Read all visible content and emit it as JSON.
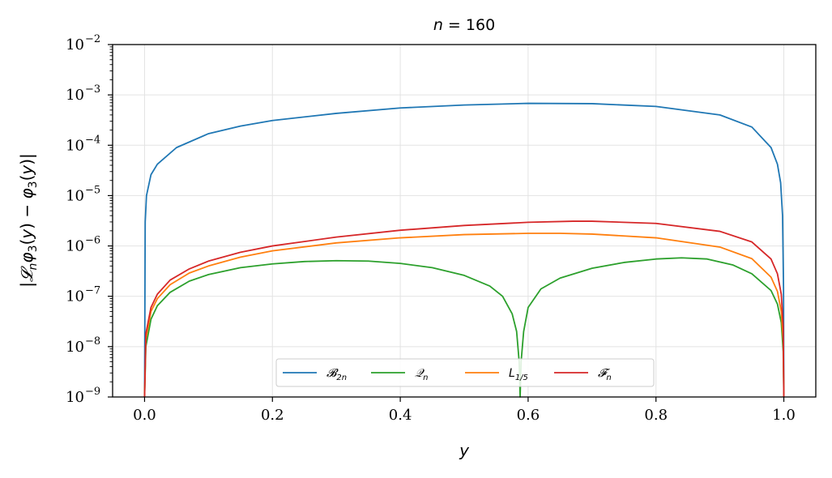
{
  "chart_data": {
    "type": "line",
    "title": "n = 160",
    "xlabel": "y",
    "ylabel": "|𝓛ₙφ₃(y) − φ₃(y)|",
    "xlim": [
      -0.05,
      1.05
    ],
    "ylim": [
      1e-09,
      0.01
    ],
    "yscale": "log",
    "grid": true,
    "legend_position": "lower-center",
    "x_ticks": [
      "0.0",
      "0.2",
      "0.4",
      "0.6",
      "0.8",
      "1.0"
    ],
    "y_ticks": [
      {
        "base": "10",
        "exp": "−2"
      },
      {
        "base": "10",
        "exp": "−3"
      },
      {
        "base": "10",
        "exp": "−4"
      },
      {
        "base": "10",
        "exp": "−5"
      },
      {
        "base": "10",
        "exp": "−6"
      },
      {
        "base": "10",
        "exp": "−7"
      },
      {
        "base": "10",
        "exp": "−8"
      },
      {
        "base": "10",
        "exp": "−9"
      }
    ],
    "series": [
      {
        "name": "𝓑₂ₙ",
        "legend_main": "𝓑",
        "legend_sub": "2n",
        "color": "#1f77b4",
        "points": [
          [
            0.0,
            1e-09
          ],
          [
            0.001,
            3e-06
          ],
          [
            0.003,
            1e-05
          ],
          [
            0.01,
            2.6e-05
          ],
          [
            0.02,
            4.2e-05
          ],
          [
            0.05,
            9e-05
          ],
          [
            0.1,
            0.00017
          ],
          [
            0.15,
            0.00024
          ],
          [
            0.2,
            0.00031
          ],
          [
            0.3,
            0.00043
          ],
          [
            0.4,
            0.00055
          ],
          [
            0.5,
            0.00063
          ],
          [
            0.6,
            0.00068
          ],
          [
            0.7,
            0.00067
          ],
          [
            0.8,
            0.00059
          ],
          [
            0.9,
            0.0004
          ],
          [
            0.95,
            0.00023
          ],
          [
            0.98,
            9e-05
          ],
          [
            0.99,
            4.2e-05
          ],
          [
            0.995,
            1.8e-05
          ],
          [
            0.998,
            4e-06
          ],
          [
            0.9995,
            1.5e-07
          ],
          [
            1.0,
            1e-09
          ]
        ]
      },
      {
        "name": "𝒬ₙ",
        "legend_main": "𝒬",
        "legend_sub": "n",
        "color": "#2ca02c",
        "points": [
          [
            0.0,
            1e-09
          ],
          [
            0.002,
            1e-08
          ],
          [
            0.01,
            3.5e-08
          ],
          [
            0.02,
            6.5e-08
          ],
          [
            0.04,
            1.2e-07
          ],
          [
            0.07,
            2e-07
          ],
          [
            0.1,
            2.7e-07
          ],
          [
            0.15,
            3.7e-07
          ],
          [
            0.2,
            4.4e-07
          ],
          [
            0.25,
            4.9e-07
          ],
          [
            0.3,
            5.1e-07
          ],
          [
            0.35,
            5e-07
          ],
          [
            0.4,
            4.5e-07
          ],
          [
            0.45,
            3.7e-07
          ],
          [
            0.5,
            2.6e-07
          ],
          [
            0.54,
            1.6e-07
          ],
          [
            0.56,
            1e-07
          ],
          [
            0.575,
            4.5e-08
          ],
          [
            0.582,
            2e-08
          ],
          [
            0.586,
            5e-09
          ],
          [
            0.5875,
            1e-09
          ],
          [
            0.589,
            5e-09
          ],
          [
            0.593,
            2e-08
          ],
          [
            0.6,
            6e-08
          ],
          [
            0.62,
            1.4e-07
          ],
          [
            0.65,
            2.3e-07
          ],
          [
            0.7,
            3.6e-07
          ],
          [
            0.75,
            4.7e-07
          ],
          [
            0.8,
            5.5e-07
          ],
          [
            0.84,
            5.8e-07
          ],
          [
            0.88,
            5.5e-07
          ],
          [
            0.92,
            4.2e-07
          ],
          [
            0.95,
            2.8e-07
          ],
          [
            0.98,
            1.3e-07
          ],
          [
            0.99,
            7e-08
          ],
          [
            0.996,
            3e-08
          ],
          [
            0.999,
            8e-09
          ],
          [
            1.0,
            1e-09
          ]
        ]
      },
      {
        "name": "L₁/₅",
        "legend_main": "L",
        "legend_sub": "1/5",
        "color": "#ff7f0e",
        "points": [
          [
            0.0,
            1e-09
          ],
          [
            0.002,
            1.4e-08
          ],
          [
            0.01,
            5e-08
          ],
          [
            0.02,
            9e-08
          ],
          [
            0.04,
            1.7e-07
          ],
          [
            0.07,
            2.9e-07
          ],
          [
            0.1,
            4e-07
          ],
          [
            0.15,
            6e-07
          ],
          [
            0.2,
            8e-07
          ],
          [
            0.3,
            1.15e-06
          ],
          [
            0.4,
            1.45e-06
          ],
          [
            0.5,
            1.68e-06
          ],
          [
            0.6,
            1.78e-06
          ],
          [
            0.65,
            1.78e-06
          ],
          [
            0.7,
            1.72e-06
          ],
          [
            0.8,
            1.45e-06
          ],
          [
            0.9,
            9.5e-07
          ],
          [
            0.95,
            5.6e-07
          ],
          [
            0.98,
            2.4e-07
          ],
          [
            0.99,
            1.25e-07
          ],
          [
            0.996,
            5e-08
          ],
          [
            0.999,
            1.3e-08
          ],
          [
            1.0,
            1e-09
          ]
        ]
      },
      {
        "name": "𝓕ₙ",
        "legend_main": "𝓕",
        "legend_sub": "n",
        "color": "#d62728",
        "points": [
          [
            0.0,
            1e-09
          ],
          [
            0.002,
            1.8e-08
          ],
          [
            0.01,
            6e-08
          ],
          [
            0.02,
            1.1e-07
          ],
          [
            0.04,
            2.1e-07
          ],
          [
            0.07,
            3.5e-07
          ],
          [
            0.1,
            5e-07
          ],
          [
            0.15,
            7.5e-07
          ],
          [
            0.2,
            1e-06
          ],
          [
            0.3,
            1.5e-06
          ],
          [
            0.4,
            2.05e-06
          ],
          [
            0.5,
            2.55e-06
          ],
          [
            0.6,
            2.95e-06
          ],
          [
            0.67,
            3.1e-06
          ],
          [
            0.7,
            3.1e-06
          ],
          [
            0.8,
            2.8e-06
          ],
          [
            0.9,
            1.95e-06
          ],
          [
            0.95,
            1.2e-06
          ],
          [
            0.98,
            5.5e-07
          ],
          [
            0.99,
            2.8e-07
          ],
          [
            0.996,
            1.1e-07
          ],
          [
            0.999,
            2.5e-08
          ],
          [
            1.0,
            1e-09
          ]
        ]
      }
    ]
  }
}
